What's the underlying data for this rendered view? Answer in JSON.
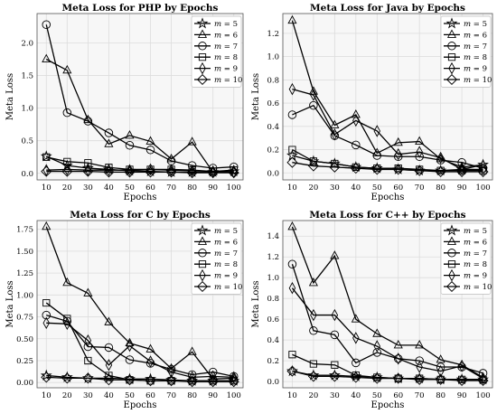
{
  "chart_data": [
    {
      "type": "line",
      "title": "Meta Loss for PHP by Epochs",
      "xlabel": "Epochs",
      "ylabel": "Meta Loss",
      "x": [
        10,
        20,
        30,
        40,
        50,
        60,
        70,
        80,
        90,
        100
      ],
      "xlim": [
        10,
        100
      ],
      "ylim": [
        -0.1,
        2.45
      ],
      "yticks": [
        0.0,
        0.5,
        1.0,
        1.5,
        2.0
      ],
      "ytick_labels": [
        "0.0",
        "0.5",
        "1.0",
        "1.5",
        "2.0"
      ],
      "grid": true,
      "legend_position": "top-right",
      "series": [
        {
          "name": "m = 5",
          "marker": "star",
          "values": [
            0.26,
            0.12,
            0.08,
            0.06,
            0.04,
            0.03,
            0.02,
            0.02,
            0.02,
            0.03
          ]
        },
        {
          "name": "m = 6",
          "marker": "triangle",
          "values": [
            1.75,
            1.58,
            0.82,
            0.45,
            0.58,
            0.49,
            0.22,
            0.48,
            0.02,
            0.05
          ]
        },
        {
          "name": "m = 7",
          "marker": "circle",
          "values": [
            2.28,
            0.93,
            0.8,
            0.62,
            0.43,
            0.36,
            0.19,
            0.12,
            0.08,
            0.1
          ]
        },
        {
          "name": "m = 8",
          "marker": "square",
          "values": [
            0.25,
            0.18,
            0.16,
            0.09,
            0.06,
            0.06,
            0.06,
            0.05,
            0.03,
            0.05
          ]
        },
        {
          "name": "m = 9",
          "marker": "thin-diamond",
          "values": [
            0.05,
            0.06,
            0.05,
            0.05,
            0.05,
            0.06,
            0.05,
            0.04,
            0.03,
            0.02
          ]
        },
        {
          "name": "m = 10",
          "marker": "diamond",
          "values": [
            0.03,
            0.03,
            0.03,
            0.02,
            0.02,
            0.02,
            0.02,
            0.01,
            0.01,
            0.01
          ]
        }
      ]
    },
    {
      "type": "line",
      "title": "Meta Loss for Java by Epochs",
      "xlabel": "Epochs",
      "ylabel": "Meta Loss",
      "x": [
        10,
        20,
        30,
        40,
        50,
        60,
        70,
        80,
        90,
        100
      ],
      "xlim": [
        10,
        100
      ],
      "ylim": [
        -0.06,
        1.37
      ],
      "yticks": [
        0.0,
        0.2,
        0.4,
        0.6,
        0.8,
        1.0,
        1.2
      ],
      "ytick_labels": [
        "0.0",
        "0.2",
        "0.4",
        "0.6",
        "0.8",
        "1.0",
        "1.2"
      ],
      "grid": true,
      "legend_position": "top-right",
      "series": [
        {
          "name": "m = 5",
          "marker": "star",
          "values": [
            0.15,
            0.1,
            0.08,
            0.05,
            0.04,
            0.03,
            0.02,
            0.02,
            0.03,
            0.07
          ]
        },
        {
          "name": "m = 6",
          "marker": "triangle",
          "values": [
            1.31,
            0.7,
            0.41,
            0.5,
            0.17,
            0.26,
            0.27,
            0.12,
            0.05,
            0.07
          ]
        },
        {
          "name": "m = 7",
          "marker": "circle",
          "values": [
            0.5,
            0.58,
            0.32,
            0.24,
            0.15,
            0.14,
            0.14,
            0.11,
            0.09,
            0.04
          ]
        },
        {
          "name": "m = 8",
          "marker": "square",
          "values": [
            0.2,
            0.1,
            0.08,
            0.05,
            0.04,
            0.04,
            0.03,
            0.02,
            0.02,
            0.02
          ]
        },
        {
          "name": "m = 9",
          "marker": "thin-diamond",
          "values": [
            0.72,
            0.67,
            0.33,
            0.45,
            0.36,
            0.16,
            0.18,
            0.13,
            0.03,
            0.03
          ]
        },
        {
          "name": "m = 10",
          "marker": "diamond",
          "values": [
            0.09,
            0.06,
            0.05,
            0.04,
            0.03,
            0.03,
            0.02,
            0.01,
            0.01,
            0.01
          ]
        }
      ]
    },
    {
      "type": "line",
      "title": "Meta Loss for C by Epochs",
      "xlabel": "Epochs",
      "ylabel": "Meta Loss",
      "x": [
        10,
        20,
        30,
        40,
        50,
        60,
        70,
        80,
        90,
        100
      ],
      "xlim": [
        10,
        100
      ],
      "ylim": [
        -0.06,
        1.85
      ],
      "yticks": [
        0.0,
        0.25,
        0.5,
        0.75,
        1.0,
        1.25,
        1.5,
        1.75
      ],
      "ytick_labels": [
        "0.00",
        "0.25",
        "0.50",
        "0.75",
        "1.00",
        "1.25",
        "1.50",
        "1.75"
      ],
      "grid": true,
      "legend_position": "top-right",
      "series": [
        {
          "name": "m = 5",
          "marker": "star",
          "values": [
            0.08,
            0.06,
            0.05,
            0.05,
            0.04,
            0.04,
            0.03,
            0.02,
            0.02,
            0.02
          ]
        },
        {
          "name": "m = 6",
          "marker": "triangle",
          "values": [
            1.78,
            1.14,
            1.02,
            0.69,
            0.45,
            0.38,
            0.16,
            0.35,
            0.04,
            0.05
          ]
        },
        {
          "name": "m = 7",
          "marker": "circle",
          "values": [
            0.77,
            0.7,
            0.41,
            0.4,
            0.26,
            0.22,
            0.15,
            0.09,
            0.12,
            0.07
          ]
        },
        {
          "name": "m = 8",
          "marker": "square",
          "values": [
            0.91,
            0.73,
            0.25,
            0.08,
            0.03,
            0.02,
            0.02,
            0.02,
            0.02,
            0.02
          ]
        },
        {
          "name": "m = 9",
          "marker": "thin-diamond",
          "values": [
            0.68,
            0.67,
            0.48,
            0.2,
            0.42,
            0.24,
            0.12,
            0.06,
            0.07,
            0.06
          ]
        },
        {
          "name": "m = 10",
          "marker": "diamond",
          "values": [
            0.06,
            0.05,
            0.05,
            0.03,
            0.03,
            0.02,
            0.02,
            0.01,
            0.01,
            0.01
          ]
        }
      ]
    },
    {
      "type": "line",
      "title": "Meta Loss for C++ by Epochs",
      "xlabel": "Epochs",
      "ylabel": "Meta Loss",
      "x": [
        10,
        20,
        30,
        40,
        50,
        60,
        70,
        80,
        90,
        100
      ],
      "xlim": [
        10,
        100
      ],
      "ylim": [
        -0.06,
        1.55
      ],
      "yticks": [
        0.0,
        0.2,
        0.4,
        0.6,
        0.8,
        1.0,
        1.2,
        1.4
      ],
      "ytick_labels": [
        "0.0",
        "0.2",
        "0.4",
        "0.6",
        "0.8",
        "1.0",
        "1.2",
        "1.4"
      ],
      "grid": true,
      "legend_position": "top-right",
      "series": [
        {
          "name": "m = 5",
          "marker": "star",
          "values": [
            0.1,
            0.06,
            0.06,
            0.05,
            0.04,
            0.03,
            0.03,
            0.02,
            0.02,
            0.02
          ]
        },
        {
          "name": "m = 6",
          "marker": "triangle",
          "values": [
            1.49,
            0.95,
            1.21,
            0.6,
            0.46,
            0.35,
            0.35,
            0.21,
            0.16,
            0.04
          ]
        },
        {
          "name": "m = 7",
          "marker": "circle",
          "values": [
            1.13,
            0.49,
            0.45,
            0.18,
            0.28,
            0.22,
            0.2,
            0.14,
            0.14,
            0.08
          ]
        },
        {
          "name": "m = 8",
          "marker": "square",
          "values": [
            0.26,
            0.17,
            0.16,
            0.06,
            0.04,
            0.03,
            0.03,
            0.02,
            0.02,
            0.02
          ]
        },
        {
          "name": "m = 9",
          "marker": "thin-diamond",
          "values": [
            0.9,
            0.64,
            0.64,
            0.42,
            0.34,
            0.22,
            0.14,
            0.1,
            0.15,
            0.03
          ]
        },
        {
          "name": "m = 10",
          "marker": "diamond",
          "values": [
            0.1,
            0.05,
            0.05,
            0.04,
            0.03,
            0.03,
            0.02,
            0.02,
            0.01,
            0.01
          ]
        }
      ]
    }
  ]
}
